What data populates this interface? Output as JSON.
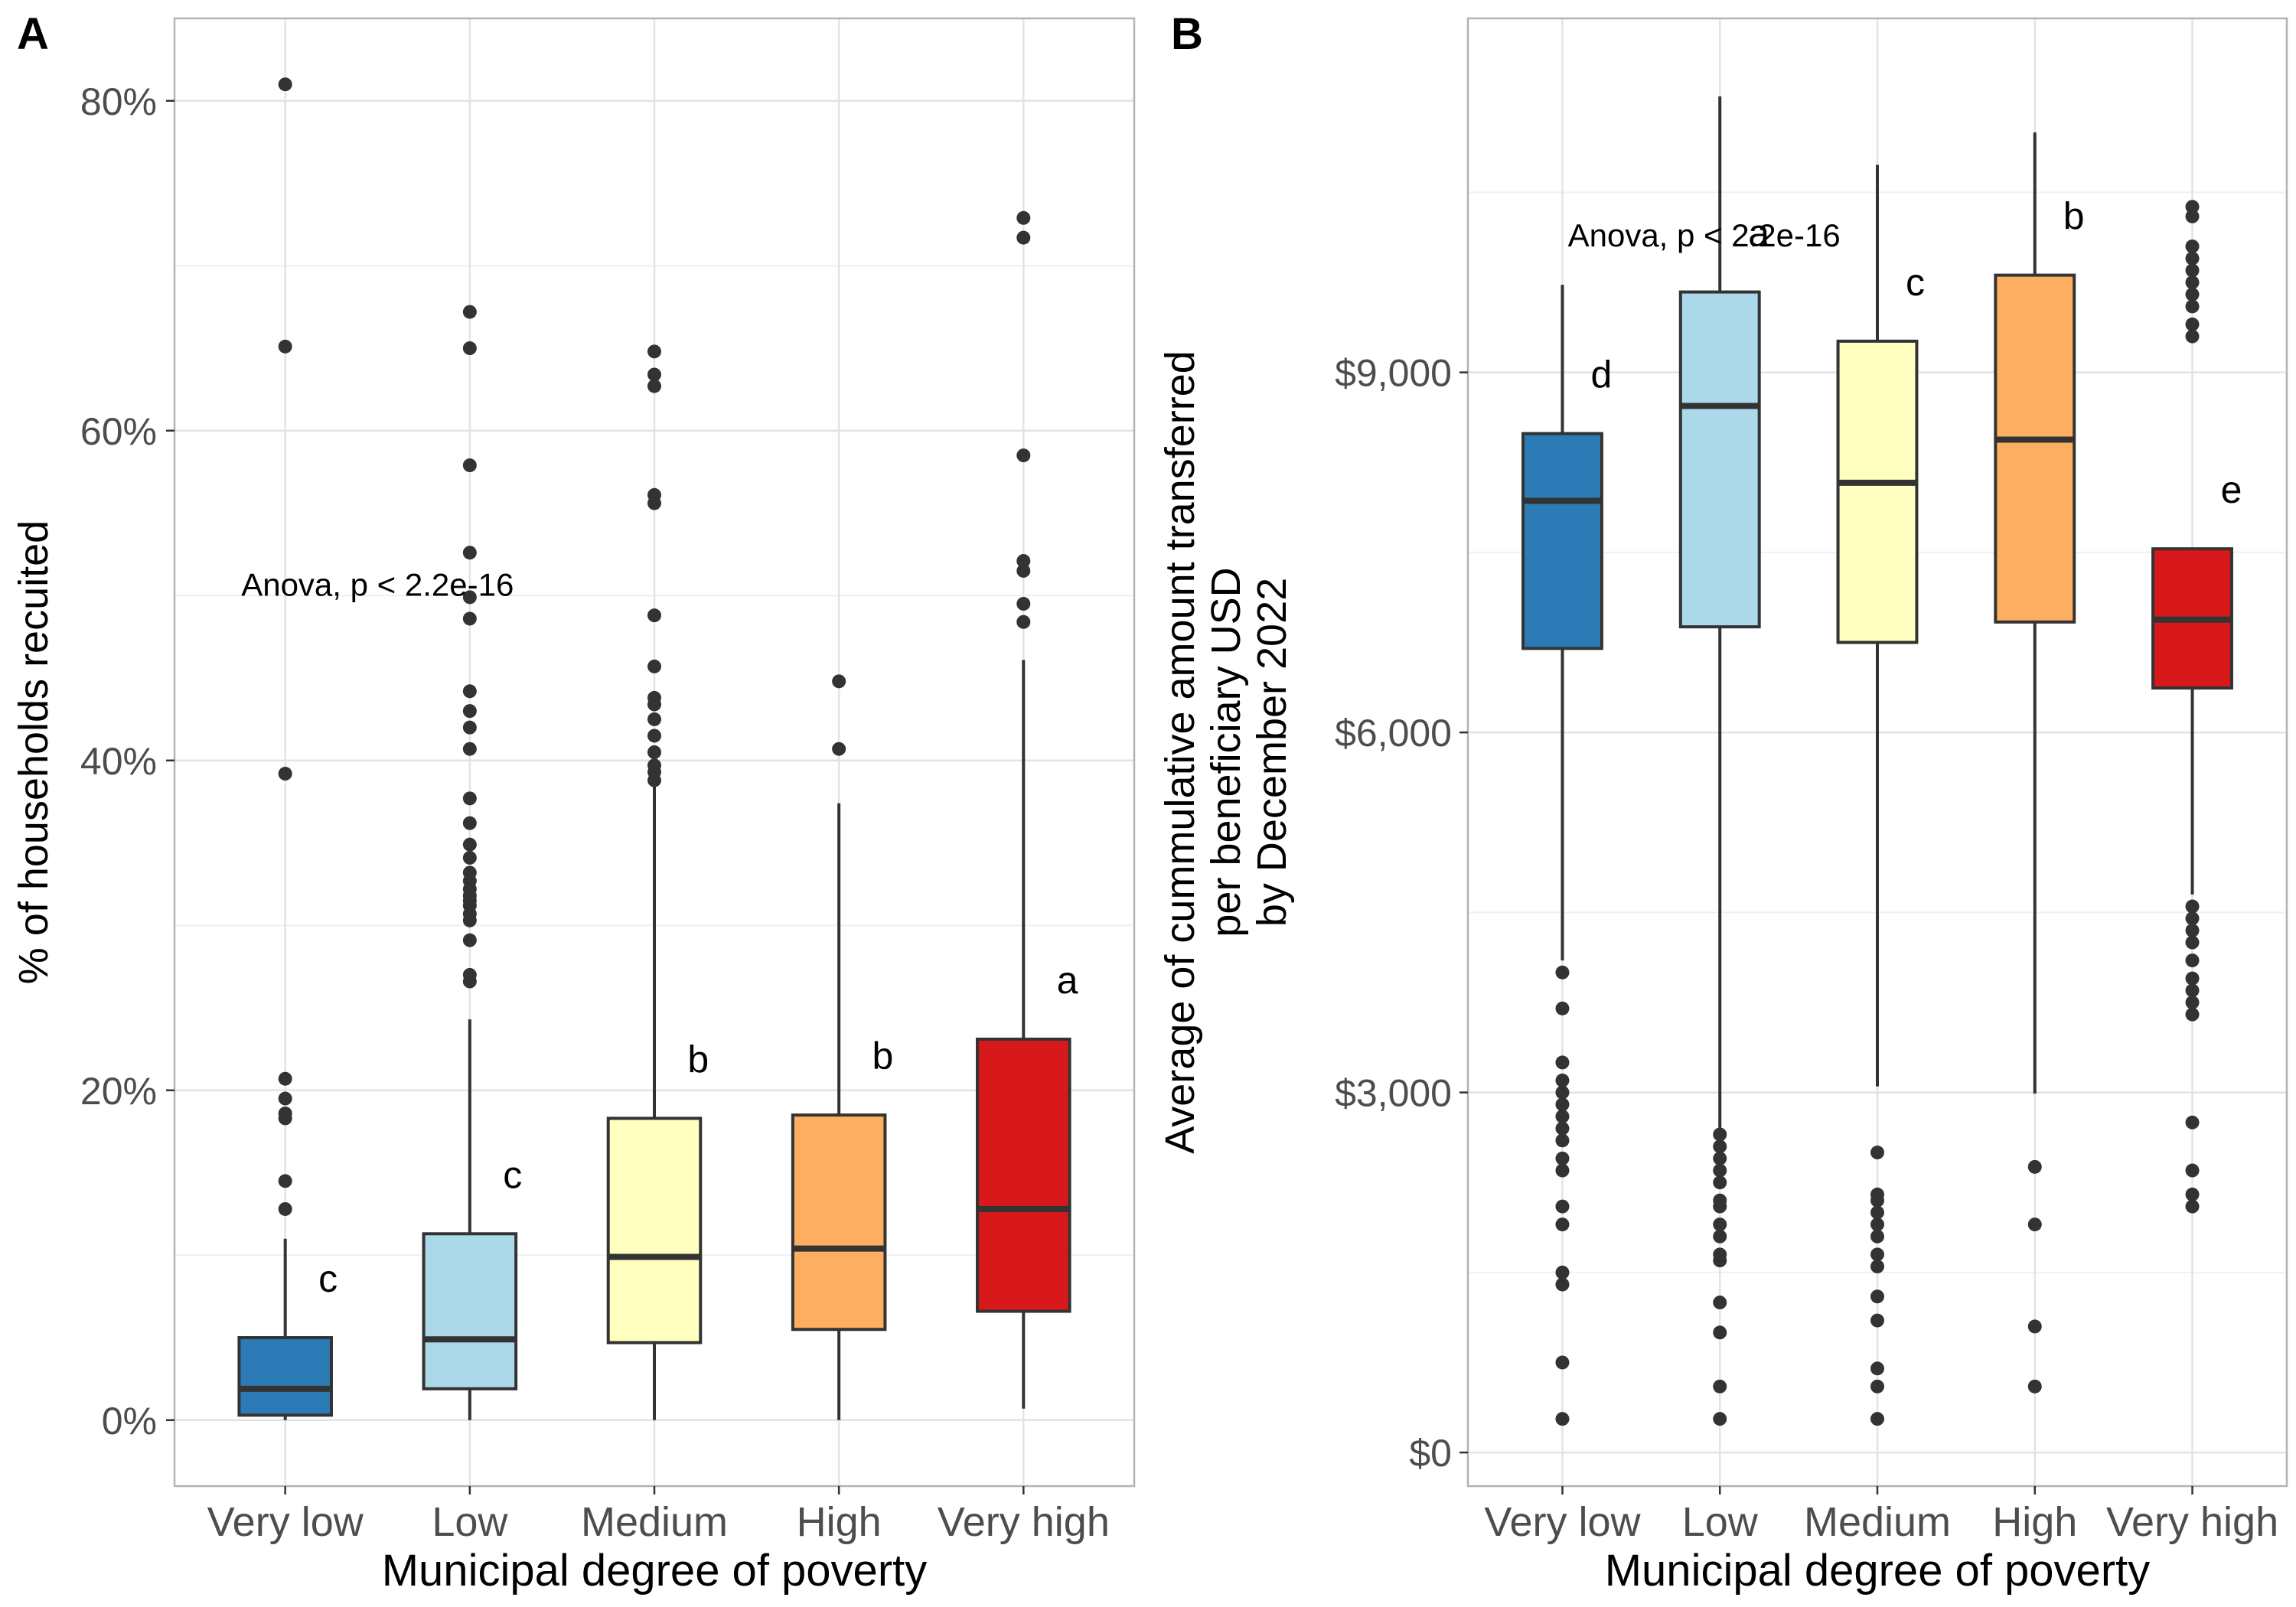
{
  "panels": [
    {
      "letter": "A",
      "annotation": "Anova, p < 2.2e-16",
      "xlabel": "Municipal degree of poverty",
      "ylabel": [
        "% of households recuited"
      ],
      "ylim": [
        -0.04,
        0.85
      ],
      "yticks": [
        0,
        0.2,
        0.4,
        0.6,
        0.8
      ],
      "ytick_labels": [
        "0%",
        "20%",
        "40%",
        "60%",
        "80%"
      ],
      "annotation_x": 1.5,
      "annotation_y": 0.5
    },
    {
      "letter": "B",
      "annotation": "Anova, p < 2.2e-16",
      "xlabel": "Municipal degree of poverty",
      "ylabel": [
        "Average of cummulative amount transferred",
        "per beneficiary USD",
        "by December 2022"
      ],
      "ylim": [
        -280,
        11950
      ],
      "yticks": [
        0,
        3000,
        6000,
        9000
      ],
      "ytick_labels": [
        "$0",
        "$3,000",
        "$6,000",
        "$9,000"
      ],
      "annotation_x": 1.9,
      "annotation_y": 10050
    }
  ],
  "chart_data": [
    {
      "type": "box",
      "title": "",
      "xlabel": "Municipal degree of poverty",
      "ylabel": "% of households recuited",
      "categories": [
        "Very low",
        "Low",
        "Medium",
        "High",
        "Very high"
      ],
      "colors": [
        "#2c7bb6",
        "#abd9e9",
        "#ffffbf",
        "#fdae61",
        "#d7191c"
      ],
      "boxes": [
        {
          "category": "Very low",
          "whisker_low": 0.0,
          "q1": 0.003,
          "median": 0.019,
          "q3": 0.05,
          "whisker_high": 0.11,
          "letter": "c",
          "outliers": [
            0.128,
            0.145,
            0.183,
            0.186,
            0.195,
            0.207,
            0.392,
            0.651,
            0.81
          ]
        },
        {
          "category": "Low",
          "whisker_low": 0.0,
          "q1": 0.019,
          "median": 0.049,
          "q3": 0.113,
          "whisker_high": 0.243,
          "letter": "c",
          "outliers": [
            0.266,
            0.27,
            0.291,
            0.303,
            0.307,
            0.312,
            0.315,
            0.318,
            0.322,
            0.327,
            0.332,
            0.341,
            0.349,
            0.362,
            0.377,
            0.407,
            0.42,
            0.43,
            0.442,
            0.486,
            0.499,
            0.526,
            0.579,
            0.65,
            0.672
          ]
        },
        {
          "category": "Medium",
          "whisker_low": 0.0,
          "q1": 0.047,
          "median": 0.099,
          "q3": 0.183,
          "whisker_high": 0.387,
          "letter": "b",
          "outliers": [
            0.388,
            0.393,
            0.397,
            0.405,
            0.415,
            0.425,
            0.434,
            0.438,
            0.457,
            0.488,
            0.556,
            0.561,
            0.627,
            0.634,
            0.648
          ]
        },
        {
          "category": "High",
          "whisker_low": 0.0,
          "q1": 0.055,
          "median": 0.104,
          "q3": 0.185,
          "whisker_high": 0.374,
          "letter": "b",
          "outliers": [
            0.407,
            0.448
          ]
        },
        {
          "category": "Very high",
          "whisker_low": 0.007,
          "q1": 0.066,
          "median": 0.128,
          "q3": 0.231,
          "whisker_high": 0.461,
          "letter": "a",
          "outliers": [
            0.484,
            0.495,
            0.515,
            0.521,
            0.585,
            0.717,
            0.729
          ]
        }
      ]
    },
    {
      "type": "box",
      "title": "",
      "xlabel": "Municipal degree of poverty",
      "ylabel": "Average of cummulative amount transferred per beneficiary USD by December 2022",
      "categories": [
        "Very low",
        "Low",
        "Medium",
        "High",
        "Very high"
      ],
      "colors": [
        "#2c7bb6",
        "#abd9e9",
        "#ffffbf",
        "#fdae61",
        "#d7191c"
      ],
      "boxes": [
        {
          "category": "Very low",
          "whisker_low": 4100,
          "q1": 6700,
          "median": 7930,
          "q3": 8490,
          "whisker_high": 9730,
          "letter": "d",
          "outliers": [
            280,
            750,
            1400,
            1500,
            1900,
            2050,
            2350,
            2450,
            2600,
            2700,
            2800,
            2900,
            3000,
            3100,
            3250,
            3700,
            4000
          ]
        },
        {
          "category": "Low",
          "whisker_low": 2700,
          "q1": 6880,
          "median": 8720,
          "q3": 9670,
          "whisker_high": 11300,
          "letter": "a",
          "outliers": [
            280,
            550,
            1000,
            1250,
            1600,
            1650,
            1800,
            1900,
            2050,
            2100,
            2250,
            2350,
            2450,
            2550,
            2650
          ]
        },
        {
          "category": "Medium",
          "whisker_low": 3050,
          "q1": 6750,
          "median": 8080,
          "q3": 9260,
          "whisker_high": 10730,
          "letter": "c",
          "outliers": [
            280,
            550,
            700,
            1100,
            1300,
            1550,
            1650,
            1800,
            1900,
            2000,
            2100,
            2150,
            2500
          ]
        },
        {
          "category": "High",
          "whisker_low": 2990,
          "q1": 6920,
          "median": 8440,
          "q3": 9810,
          "whisker_high": 11000,
          "letter": "b",
          "outliers": [
            550,
            1050,
            1900,
            2380
          ]
        },
        {
          "category": "Very high",
          "whisker_low": 4650,
          "q1": 6370,
          "median": 6940,
          "q3": 7530,
          "whisker_high": 7530,
          "letter": "e",
          "outliers": [
            2050,
            2150,
            2350,
            2750,
            3650,
            3750,
            3850,
            3950,
            4100,
            4250,
            4350,
            4450,
            4550,
            9300,
            9400,
            9550,
            9650,
            9750,
            9850,
            9950,
            10050,
            10300,
            10380
          ]
        }
      ]
    }
  ]
}
